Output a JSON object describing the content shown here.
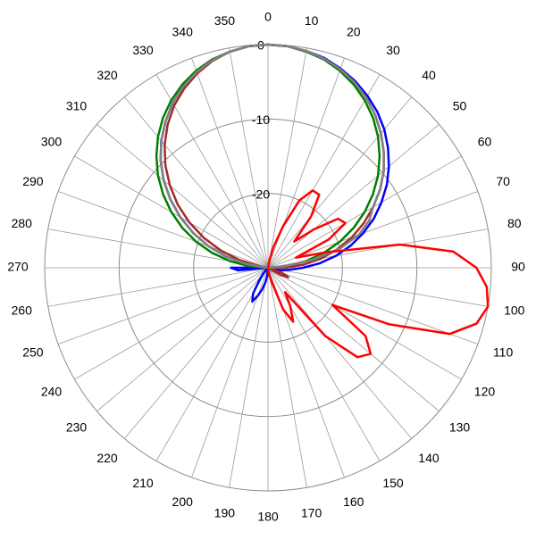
{
  "chart_data": {
    "type": "polar",
    "direction": "clockwise",
    "zero": "top",
    "theta": [
      0,
      5,
      10,
      15,
      20,
      25,
      30,
      35,
      40,
      45,
      50,
      55,
      60,
      65,
      70,
      75,
      80,
      85,
      90,
      95,
      100,
      105,
      110,
      115,
      120,
      125,
      130,
      135,
      140,
      145,
      150,
      155,
      160,
      165,
      170,
      175,
      180,
      185,
      190,
      195,
      200,
      205,
      210,
      215,
      220,
      225,
      230,
      235,
      240,
      245,
      250,
      255,
      260,
      265,
      270,
      275,
      280,
      285,
      290,
      295,
      300,
      305,
      310,
      315,
      320,
      325,
      330,
      335,
      340,
      345,
      350,
      355
    ],
    "thetaticks": [
      0,
      10,
      20,
      30,
      40,
      50,
      60,
      70,
      80,
      90,
      100,
      110,
      120,
      130,
      140,
      150,
      160,
      170,
      180,
      190,
      200,
      210,
      220,
      230,
      240,
      250,
      260,
      270,
      280,
      290,
      300,
      310,
      320,
      330,
      340,
      350
    ],
    "rlim": [
      -30,
      0
    ],
    "rticks": [
      -20,
      -10,
      0
    ],
    "grid": true,
    "series": [
      {
        "color": "#0000ff",
        "values": [
          0,
          -0.1,
          -0.4,
          -0.8,
          -1.5,
          -2.3,
          -3.3,
          -4.4,
          -5.7,
          -7.2,
          -8.8,
          -10.5,
          -12.4,
          -14.3,
          -16.4,
          -18.5,
          -20.7,
          -23.0,
          -25.3,
          -27,
          -28,
          -29,
          -30,
          -30,
          -30,
          -30,
          -30,
          -30,
          -30,
          -30,
          -30,
          -30,
          -30,
          -30,
          -30,
          -30,
          -30,
          -29,
          -28,
          -27,
          -26,
          -25,
          -26,
          -28,
          -29,
          -30,
          -30,
          -30,
          -30,
          -30,
          -30,
          -30,
          -30,
          -26,
          -25,
          -29.6,
          -26.9,
          -24.2,
          -21.5,
          -18.9,
          -16.4,
          -14.0,
          -11.7,
          -9.6,
          -7.7,
          -6.0,
          -4.4,
          -3.1,
          -2.0,
          -1.1,
          -0.5,
          -0.1
        ]
      },
      {
        "color": "#008000",
        "values": [
          0,
          -0.1,
          -0.5,
          -1.0,
          -1.8,
          -2.8,
          -4.0,
          -5.4,
          -7.0,
          -8.8,
          -10.7,
          -12.8,
          -15.0,
          -17.3,
          -19.7,
          -22.2,
          -24.8,
          -27.4,
          -30,
          -30,
          -30,
          -30,
          -30,
          -30,
          -30,
          -30,
          -30,
          -30,
          -30,
          -30,
          -30,
          -30,
          -30,
          -30,
          -30,
          -30,
          -30,
          -30,
          -30,
          -30,
          -30,
          -30,
          -30,
          -30,
          -30,
          -30,
          -30,
          -30,
          -30,
          -30,
          -30,
          -30,
          -30,
          -30,
          -30,
          -27.4,
          -24.8,
          -22.2,
          -19.7,
          -17.3,
          -15.0,
          -12.8,
          -10.7,
          -8.8,
          -7.0,
          -5.4,
          -4.0,
          -2.8,
          -1.8,
          -1.0,
          -0.5,
          -0.1
        ]
      },
      {
        "color": "#a52a2a",
        "values": [
          0,
          -0.1,
          -0.4,
          -0.9,
          -1.6,
          -2.5,
          -3.6,
          -4.9,
          -6.4,
          -8.0,
          -9.7,
          -11.6,
          -13.7,
          -15.8,
          -18.0,
          -20.4,
          -22.7,
          -25.2,
          -27.7,
          -30,
          -30,
          -30,
          -28,
          -27,
          -28,
          -30,
          -30,
          -30,
          -30,
          -30,
          -30,
          -30,
          -30,
          -30,
          -30,
          -30,
          -30,
          -30,
          -30,
          -30,
          -30,
          -30,
          -30,
          -30,
          -30,
          -30,
          -30,
          -30,
          -30,
          -30,
          -30,
          -30,
          -30,
          -30,
          -30,
          -30,
          -29,
          -26.1,
          -23.3,
          -20.5,
          -17.8,
          -15.2,
          -12.8,
          -10.5,
          -8.4,
          -6.5,
          -4.8,
          -3.4,
          -2.2,
          -1.2,
          -0.5,
          -0.1
        ]
      },
      {
        "color": "#808080",
        "values": [
          0,
          -0.1,
          -0.4,
          -0.9,
          -1.6,
          -2.5,
          -3.6,
          -4.9,
          -6.4,
          -8.0,
          -9.7,
          -11.6,
          -13.7,
          -15,
          -17,
          -20,
          -24,
          -27.7,
          -30,
          -30,
          -30,
          -30,
          -30,
          -30,
          -30,
          -30,
          -30,
          -30,
          -30,
          -30,
          -30,
          -30,
          -30,
          -30,
          -30,
          -30,
          -30,
          -30,
          -30,
          -30,
          -30,
          -30,
          -30,
          -30,
          -30,
          -30,
          -30,
          -30,
          -30,
          -30,
          -30,
          -30,
          -30,
          -30,
          -30,
          -29.6,
          -26.9,
          -24.2,
          -21.5,
          -18.9,
          -16.4,
          -14.0,
          -11.7,
          -9.6,
          -7.7,
          -6.0,
          -4.4,
          -3.1,
          -2.0,
          -1.1,
          -0.5,
          -0.1
        ]
      },
      {
        "color": "#ff0000",
        "values": [
          -30,
          -30,
          -29,
          -27,
          -24,
          -20,
          -18,
          -18,
          -21,
          -25,
          -22,
          -18.5,
          -18,
          -21,
          -26,
          -22,
          -12,
          -5,
          -2,
          -0.5,
          0,
          -1,
          -4,
          -12,
          -20,
          -14,
          -12,
          -13,
          -18,
          -26,
          -24,
          -22,
          -24,
          -28,
          -29,
          -30,
          -30,
          -30,
          -30,
          -30,
          -30,
          -30,
          -30,
          -30,
          -30,
          -30,
          -30,
          -30,
          -30,
          -30,
          -30,
          -30,
          -30,
          -30,
          -30,
          -30,
          -30,
          -30,
          -30,
          -30,
          -30,
          -30,
          -30,
          -30,
          -30,
          -30,
          -30,
          -30,
          -30,
          -30,
          -30,
          -30
        ]
      }
    ]
  }
}
